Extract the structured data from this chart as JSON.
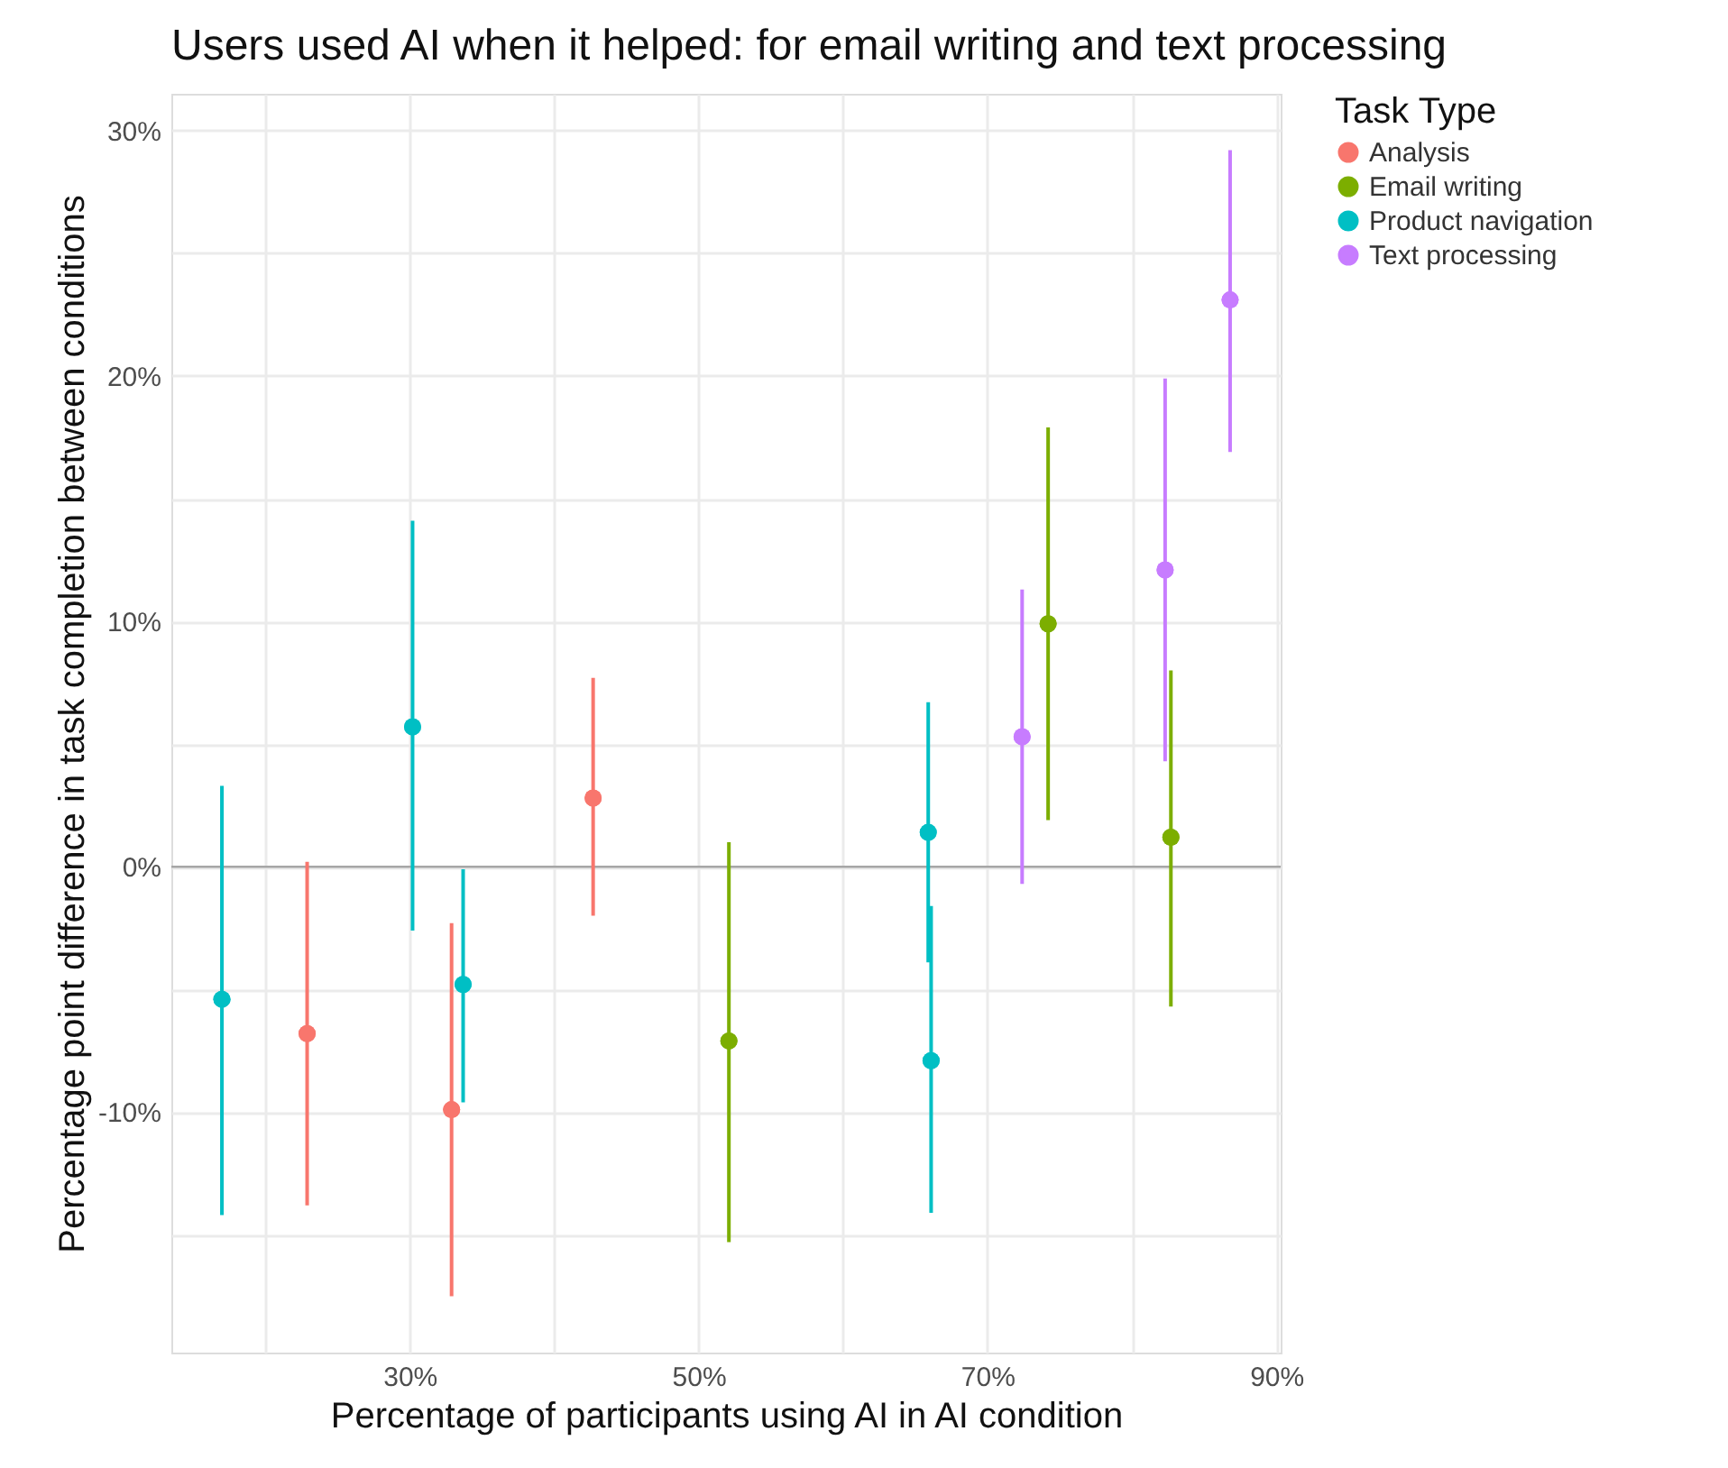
{
  "chart_data": {
    "type": "scatter",
    "title": "Users used AI when it helped: for email writing and text processing",
    "xlabel": "Percentage of participants using AI in AI condition",
    "ylabel": "Percentage point difference in task completion between conditions",
    "legend_title": "Task Type",
    "series": [
      {
        "name": "Analysis",
        "color": "#f8766d",
        "x": [
          22.9,
          32.9,
          42.7
        ],
        "values": [
          -6.8,
          -9.9,
          2.8
        ],
        "errors": [
          [
            -13.8,
            0.2
          ],
          [
            -17.5,
            -2.3
          ],
          [
            -2.0,
            7.7
          ]
        ]
      },
      {
        "name": "Email writing",
        "color": "#7cae00",
        "x": [
          52.1,
          74.2,
          82.7
        ],
        "values": [
          -7.1,
          9.9,
          1.2
        ],
        "errors": [
          [
            -15.3,
            1.0
          ],
          [
            1.9,
            17.9
          ],
          [
            -5.7,
            8.0
          ]
        ]
      },
      {
        "name": "Product navigation",
        "color": "#00bfc4",
        "x": [
          17.0,
          30.2,
          33.7,
          65.9,
          66.1
        ],
        "values": [
          -5.4,
          5.7,
          -4.8,
          1.4,
          -7.9
        ],
        "errors": [
          [
            -14.2,
            3.3
          ],
          [
            -2.6,
            14.1
          ],
          [
            -9.6,
            -0.1
          ],
          [
            -3.9,
            6.7
          ],
          [
            -14.1,
            -1.6
          ]
        ]
      },
      {
        "name": "Text processing",
        "color": "#c77cff",
        "x": [
          72.4,
          82.3,
          86.8
        ],
        "values": [
          5.3,
          12.1,
          23.1
        ],
        "errors": [
          [
            -0.7,
            11.3
          ],
          [
            4.3,
            19.9
          ],
          [
            16.9,
            29.2
          ]
        ]
      }
    ],
    "xlim": [
      13.5,
      90.3
    ],
    "ylim": [
      -19.8,
      31.5
    ],
    "xticks": [
      {
        "value": 20,
        "label": null
      },
      {
        "value": 30,
        "label": "30%"
      },
      {
        "value": 40,
        "label": null
      },
      {
        "value": 50,
        "label": "50%"
      },
      {
        "value": 60,
        "label": null
      },
      {
        "value": 70,
        "label": "70%"
      },
      {
        "value": 80,
        "label": null
      },
      {
        "value": 90,
        "label": "90%"
      }
    ],
    "yticks": [
      {
        "value": -15,
        "label": null
      },
      {
        "value": -10,
        "label": "-10%"
      },
      {
        "value": -5,
        "label": null
      },
      {
        "value": 0,
        "label": "0%"
      },
      {
        "value": 5,
        "label": null
      },
      {
        "value": 10,
        "label": "10%"
      },
      {
        "value": 15,
        "label": null
      },
      {
        "value": 20,
        "label": "20%"
      },
      {
        "value": 25,
        "label": null
      },
      {
        "value": 30,
        "label": "30%"
      }
    ],
    "ref_lines": [
      {
        "axis": "y",
        "value": 0,
        "color": "#a6a6a6",
        "line_style": "solid"
      }
    ],
    "grid": true,
    "legend": "right",
    "marker": "circle"
  }
}
